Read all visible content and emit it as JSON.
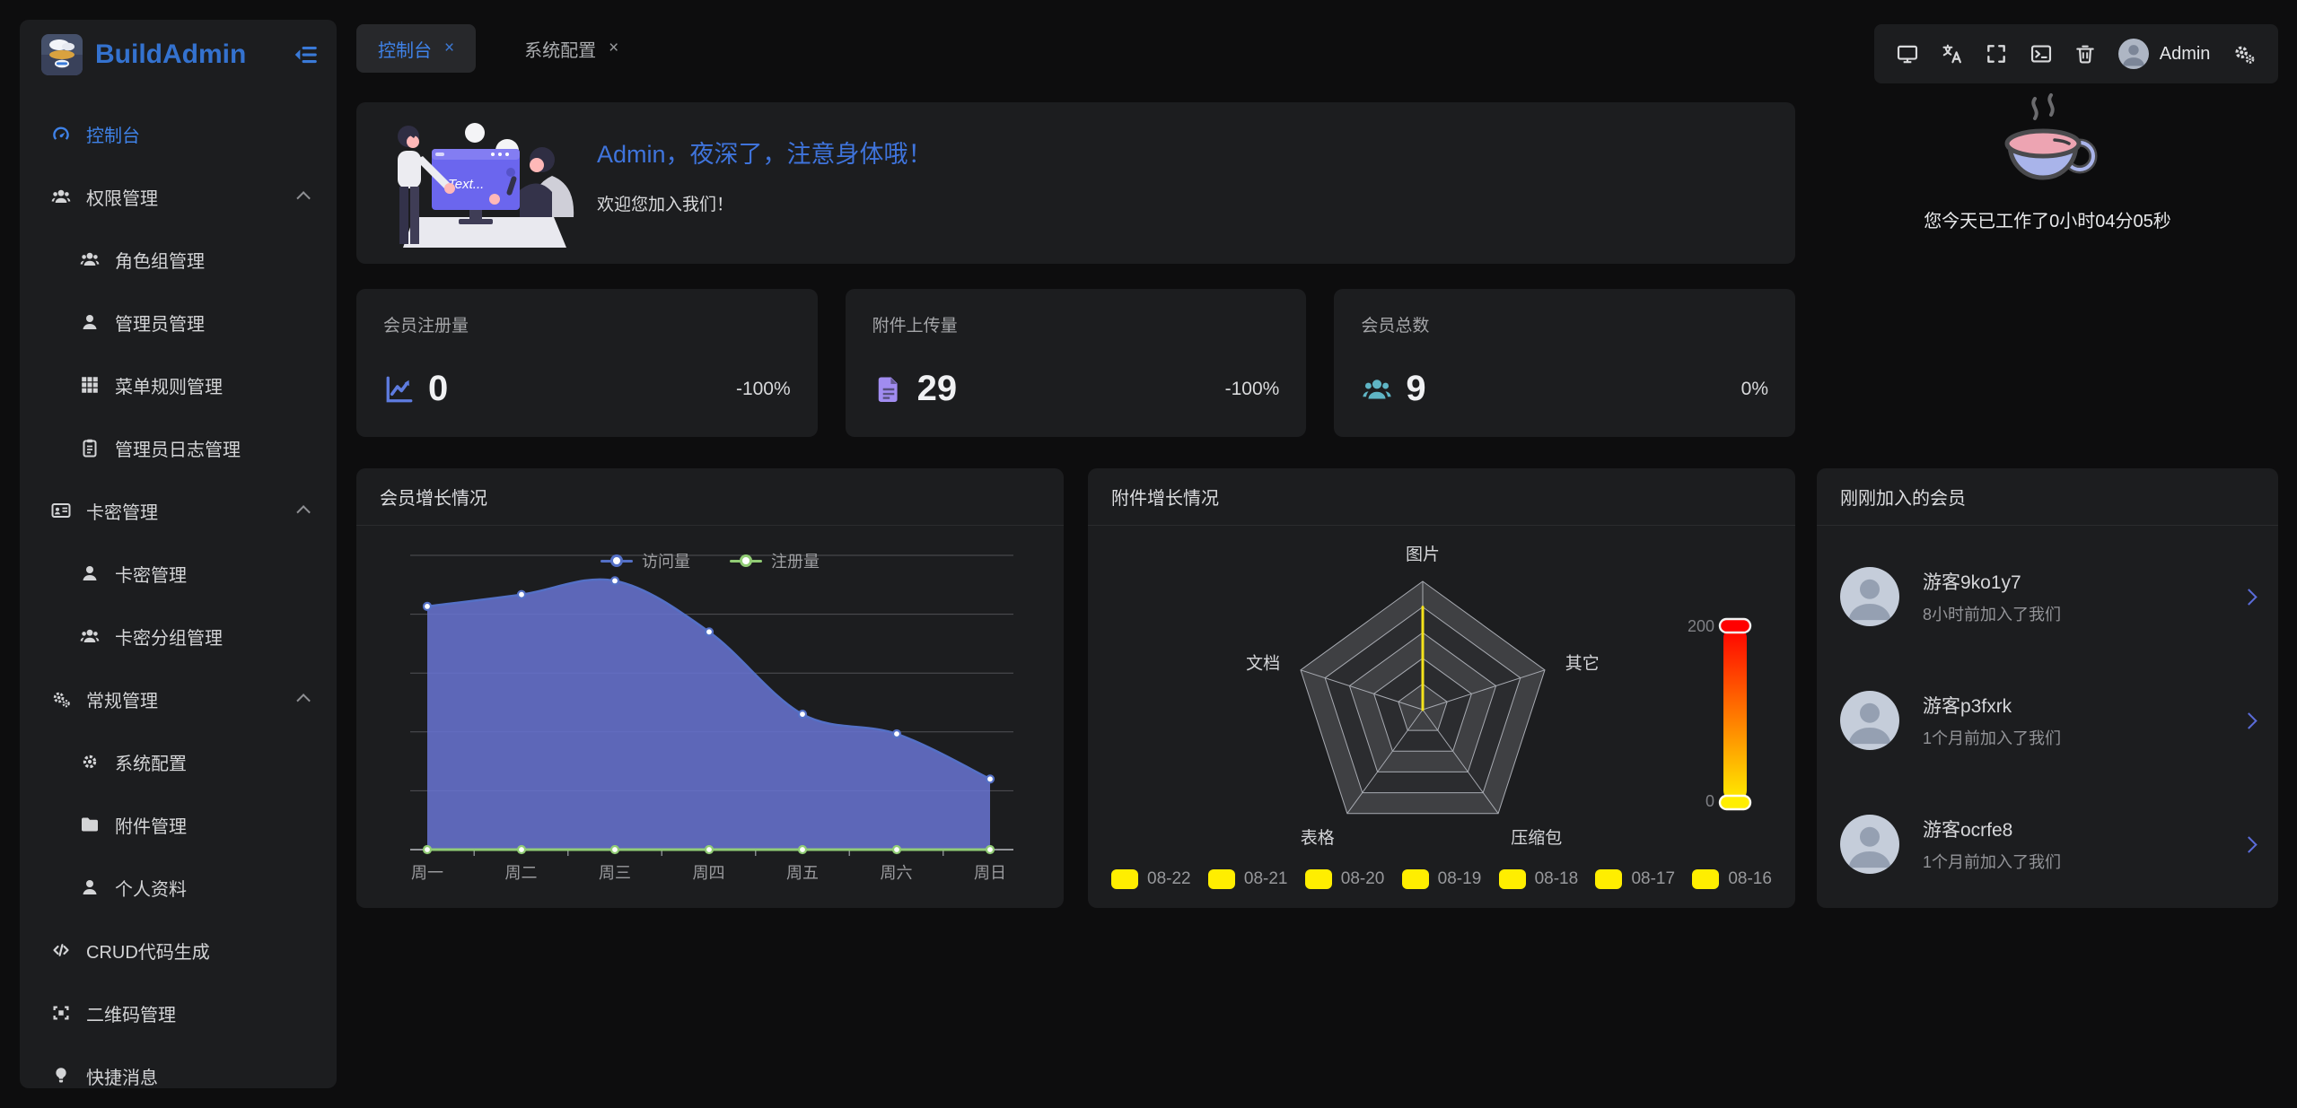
{
  "app": {
    "window_title": "BuildAdmin"
  },
  "glyphs": {
    "close": "×"
  },
  "colors": {
    "accent": "#3f82e8",
    "logo_blue": "#3472cf",
    "banner_title_blue": "#3f74dc",
    "visits_series": "#5470c6",
    "register_series": "#91cc75",
    "radar_spike_yellow": "#f5e31b",
    "visualmap_top": "#ff0000",
    "visualmap_bottom": "#ffee00",
    "stat_member_icon": "#5e7ce0",
    "stat_attachment_icon": "#a18cf0",
    "stat_total_icon": "#5fb5c5"
  },
  "sidebar": {
    "logo_text": "BuildAdmin",
    "items": [
      {
        "label": "控制台",
        "icon": "gauge",
        "level": 0,
        "active": true
      },
      {
        "label": "权限管理",
        "icon": "users",
        "level": 0,
        "expanded": true
      },
      {
        "label": "角色组管理",
        "icon": "users",
        "level": 1
      },
      {
        "label": "管理员管理",
        "icon": "user",
        "level": 1
      },
      {
        "label": "菜单规则管理",
        "icon": "grid",
        "level": 1
      },
      {
        "label": "管理员日志管理",
        "icon": "clipboard",
        "level": 1
      },
      {
        "label": "卡密管理",
        "icon": "idcard",
        "level": 0,
        "expanded": true
      },
      {
        "label": "卡密管理",
        "icon": "user",
        "level": 1
      },
      {
        "label": "卡密分组管理",
        "icon": "users",
        "level": 1
      },
      {
        "label": "常规管理",
        "icon": "gears",
        "level": 0,
        "expanded": true
      },
      {
        "label": "系统配置",
        "icon": "gear",
        "level": 1
      },
      {
        "label": "附件管理",
        "icon": "folder",
        "level": 1
      },
      {
        "label": "个人资料",
        "icon": "user",
        "level": 1
      },
      {
        "label": "CRUD代码生成",
        "icon": "code",
        "level": 0
      },
      {
        "label": "二维码管理",
        "icon": "qrcode",
        "level": 0
      },
      {
        "label": "快捷消息",
        "icon": "bulb",
        "level": 0
      }
    ]
  },
  "tabs": [
    {
      "label": "控制台",
      "active": true
    },
    {
      "label": "系统配置",
      "active": false
    }
  ],
  "toolbar": {
    "icons": [
      "monitor",
      "translate",
      "fullscreen",
      "terminal",
      "trash"
    ],
    "user": "Admin"
  },
  "welcome": {
    "title": "Admin，夜深了，注意身体哦！",
    "subtitle": "欢迎您加入我们！",
    "screen_text": "Text..."
  },
  "worktime": {
    "text": "您今天已工作了0小时04分05秒"
  },
  "stats": [
    {
      "label": "会员注册量",
      "value": "0",
      "delta": "-100%",
      "icon": "chart-line",
      "color": "#5e7ce0"
    },
    {
      "label": "附件上传量",
      "value": "29",
      "delta": "-100%",
      "icon": "file",
      "color": "#a18cf0"
    },
    {
      "label": "会员总数",
      "value": "9",
      "delta": "0%",
      "icon": "users",
      "color": "#5fb5c5"
    }
  ],
  "panels": {
    "member_growth": "会员增长情况",
    "attachment_growth": "附件增长情况",
    "new_members": "刚刚加入的会员"
  },
  "chart_data": [
    {
      "type": "area",
      "title": "会员增长情况",
      "categories": [
        "周一",
        "周二",
        "周三",
        "周四",
        "周五",
        "周六",
        "周日"
      ],
      "series": [
        {
          "name": "访问量",
          "color": "#5470c6",
          "values": [
            124,
            130,
            137,
            111,
            69,
            59,
            36
          ]
        },
        {
          "name": "注册量",
          "color": "#91cc75",
          "values": [
            0,
            0,
            0,
            0,
            0,
            0,
            0
          ]
        }
      ],
      "ylim": [
        0,
        150
      ],
      "grid": true,
      "legend_position": "top-center"
    },
    {
      "type": "radar",
      "title": "附件增长情况",
      "indicators": [
        {
          "name": "图片",
          "max": 200
        },
        {
          "name": "其它",
          "max": 200
        },
        {
          "name": "压缩包",
          "max": 200
        },
        {
          "name": "表格",
          "max": 200
        },
        {
          "name": "文档",
          "max": 200
        }
      ],
      "rings": 5,
      "series": [
        {
          "name": "08-22",
          "values": [
            160,
            0,
            0,
            0,
            0
          ]
        },
        {
          "name": "08-21",
          "values": [
            0,
            0,
            0,
            0,
            0
          ]
        },
        {
          "name": "08-20",
          "values": [
            0,
            0,
            0,
            0,
            0
          ]
        },
        {
          "name": "08-19",
          "values": [
            0,
            0,
            0,
            0,
            0
          ]
        },
        {
          "name": "08-18",
          "values": [
            0,
            0,
            0,
            0,
            0
          ]
        },
        {
          "name": "08-17",
          "values": [
            0,
            0,
            0,
            0,
            0
          ]
        },
        {
          "name": "08-16",
          "values": [
            0,
            0,
            0,
            0,
            0
          ]
        }
      ],
      "legend": [
        "08-22",
        "08-21",
        "08-20",
        "08-19",
        "08-18",
        "08-17",
        "08-16"
      ],
      "visual_map": {
        "min": 0,
        "max": 200,
        "top_color": "#ff0000",
        "bottom_color": "#ffee00"
      },
      "legend_position": "bottom"
    }
  ],
  "members": [
    {
      "name": "游客9ko1y7",
      "joined": "8小时前加入了我们"
    },
    {
      "name": "游客p3fxrk",
      "joined": "1个月前加入了我们"
    },
    {
      "name": "游客ocrfe8",
      "joined": "1个月前加入了我们"
    }
  ]
}
